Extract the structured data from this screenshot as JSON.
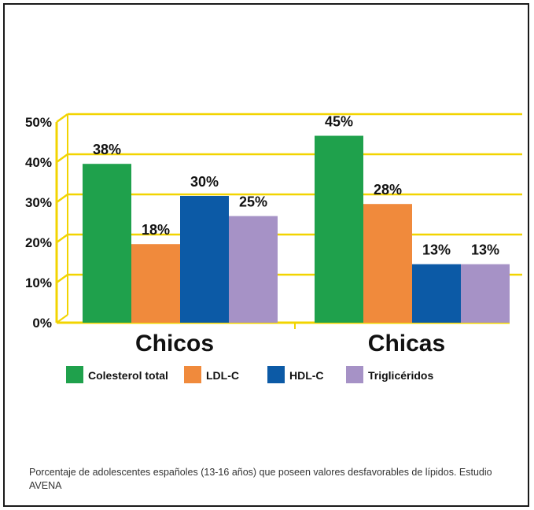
{
  "chart_data": {
    "type": "bar",
    "title": "",
    "xlabel": "",
    "ylabel": "",
    "categories": [
      "Chicos",
      "Chicas"
    ],
    "series": [
      {
        "name": "Colesterol total",
        "color": "#1fa14c",
        "values": [
          38,
          45
        ],
        "labels": [
          "38%",
          "45%"
        ]
      },
      {
        "name": "LDL-C",
        "color": "#f08a3c",
        "values": [
          18,
          28
        ],
        "labels": [
          "18%",
          "28%"
        ]
      },
      {
        "name": "HDL-C",
        "color": "#0c5aa6",
        "values": [
          30,
          13
        ],
        "labels": [
          "30%",
          "13%"
        ]
      },
      {
        "name": "Triglicéridos",
        "color": "#a692c6",
        "values": [
          25,
          13
        ],
        "labels": [
          "25%",
          "13%"
        ]
      }
    ],
    "ylim": [
      0,
      50
    ],
    "yticks": [
      0,
      10,
      20,
      30,
      40,
      50
    ],
    "ytick_labels": [
      "0%",
      "10%",
      "20%",
      "30%",
      "40%",
      "50%"
    ],
    "grid": true,
    "grid_color": "#f2d400",
    "legend_position": "bottom"
  },
  "caption": "Porcentaje de adolescentes españoles (13-16 años) que poseen valores desfavorables de lípidos. Estudio AVENA"
}
